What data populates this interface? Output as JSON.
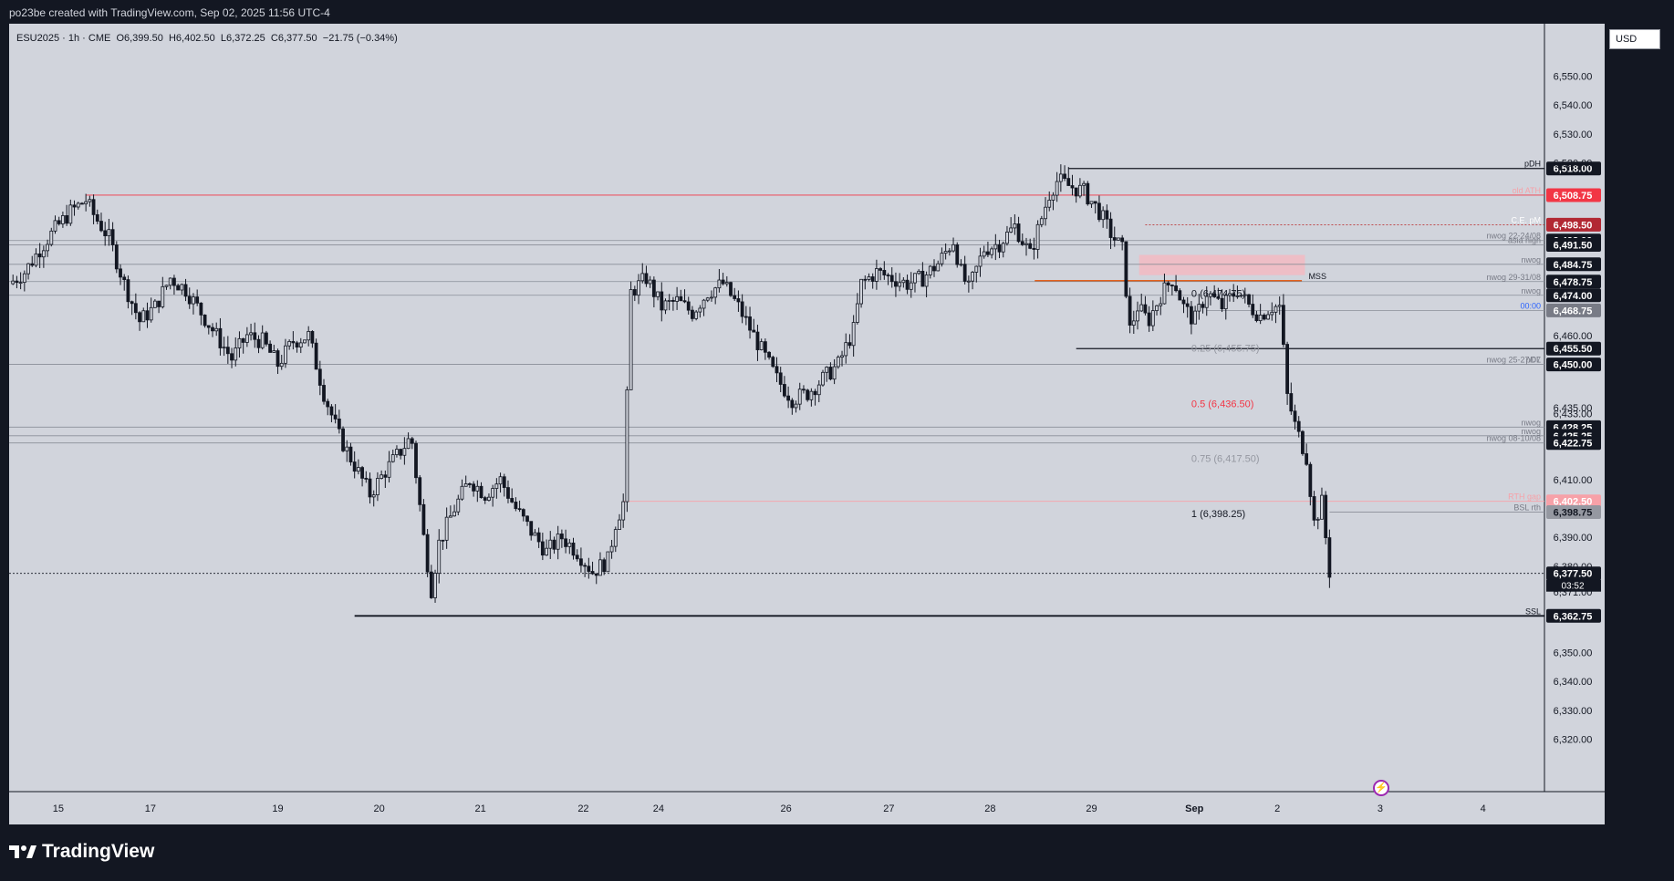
{
  "header": {
    "created_by": "po23be created with TradingView.com, Sep 02, 2025 11:56 UTC-4"
  },
  "legend": {
    "symbol": "ESU2025 · 1h · CME",
    "open": "O6,399.50",
    "high": "H6,402.50",
    "low": "L6,372.25",
    "close": "C6,377.50",
    "change": "−21.75 (−0.34%)"
  },
  "currency": "USD",
  "branding": "TradingView",
  "colors": {
    "background": "#d1d4dc",
    "frame": "#131722",
    "candle": "#131722",
    "red_level": "#f23645",
    "mss_line": "#e65100",
    "fvg_zone": "#f5b8c0",
    "blue_label": "#2962ff"
  },
  "chart_data": {
    "type": "candlestick",
    "symbol": "ESU2025",
    "timeframe": "1h",
    "ylim": [
      6310,
      6560
    ],
    "price_ticks": [
      6550,
      6540,
      6530,
      6520,
      6460,
      6435,
      6410,
      6390,
      6380,
      6350,
      6340,
      6330,
      6320
    ],
    "price_tick_labels": [
      "6,550.00",
      "6,540.00",
      "6,530.00",
      "6,520.00",
      "6,460.00",
      "6,435.00",
      "6,410.00",
      "6,390.00",
      "6,380.00",
      "6,350.00",
      "6,340.00",
      "6,330.00",
      "6,320.00"
    ],
    "date_labels": [
      {
        "label": "15",
        "t": 0.032
      },
      {
        "label": "17",
        "t": 0.092
      },
      {
        "label": "19",
        "t": 0.175
      },
      {
        "label": "20",
        "t": 0.241
      },
      {
        "label": "21",
        "t": 0.307
      },
      {
        "label": "22",
        "t": 0.374
      },
      {
        "label": "24",
        "t": 0.423
      },
      {
        "label": "26",
        "t": 0.506
      },
      {
        "label": "27",
        "t": 0.573
      },
      {
        "label": "28",
        "t": 0.639
      },
      {
        "label": "29",
        "t": 0.705
      },
      {
        "label": "Sep",
        "t": 0.772
      },
      {
        "label": "2",
        "t": 0.826
      },
      {
        "label": "3",
        "t": 0.893
      },
      {
        "label": "4",
        "t": 0.96
      }
    ],
    "price_path": [
      [
        0.0,
        6478
      ],
      [
        0.01,
        6482
      ],
      [
        0.02,
        6490
      ],
      [
        0.03,
        6497
      ],
      [
        0.04,
        6503
      ],
      [
        0.05,
        6507
      ],
      [
        0.055,
        6502
      ],
      [
        0.065,
        6494
      ],
      [
        0.075,
        6478
      ],
      [
        0.085,
        6465
      ],
      [
        0.095,
        6470
      ],
      [
        0.105,
        6480
      ],
      [
        0.115,
        6476
      ],
      [
        0.125,
        6468
      ],
      [
        0.135,
        6460
      ],
      [
        0.145,
        6452
      ],
      [
        0.155,
        6460
      ],
      [
        0.165,
        6458
      ],
      [
        0.175,
        6450
      ],
      [
        0.185,
        6458
      ],
      [
        0.195,
        6460
      ],
      [
        0.205,
        6440
      ],
      [
        0.215,
        6425
      ],
      [
        0.225,
        6415
      ],
      [
        0.235,
        6405
      ],
      [
        0.245,
        6413
      ],
      [
        0.255,
        6420
      ],
      [
        0.262,
        6425
      ],
      [
        0.27,
        6390
      ],
      [
        0.275,
        6372
      ],
      [
        0.28,
        6388
      ],
      [
        0.29,
        6400
      ],
      [
        0.3,
        6410
      ],
      [
        0.31,
        6405
      ],
      [
        0.32,
        6410
      ],
      [
        0.33,
        6400
      ],
      [
        0.34,
        6392
      ],
      [
        0.35,
        6385
      ],
      [
        0.36,
        6390
      ],
      [
        0.37,
        6385
      ],
      [
        0.38,
        6378
      ],
      [
        0.39,
        6382
      ],
      [
        0.395,
        6395
      ],
      [
        0.4,
        6402
      ],
      [
        0.405,
        6475
      ],
      [
        0.415,
        6480
      ],
      [
        0.425,
        6470
      ],
      [
        0.435,
        6472
      ],
      [
        0.445,
        6468
      ],
      [
        0.455,
        6475
      ],
      [
        0.465,
        6478
      ],
      [
        0.475,
        6470
      ],
      [
        0.485,
        6460
      ],
      [
        0.495,
        6450
      ],
      [
        0.5,
        6445
      ],
      [
        0.51,
        6438
      ],
      [
        0.52,
        6440
      ],
      [
        0.53,
        6445
      ],
      [
        0.54,
        6450
      ],
      [
        0.55,
        6462
      ],
      [
        0.555,
        6478
      ],
      [
        0.565,
        6482
      ],
      [
        0.575,
        6480
      ],
      [
        0.585,
        6478
      ],
      [
        0.595,
        6480
      ],
      [
        0.605,
        6485
      ],
      [
        0.615,
        6493
      ],
      [
        0.62,
        6482
      ],
      [
        0.625,
        6476
      ],
      [
        0.635,
        6490
      ],
      [
        0.645,
        6492
      ],
      [
        0.655,
        6498
      ],
      [
        0.665,
        6488
      ],
      [
        0.672,
        6500
      ],
      [
        0.678,
        6510
      ],
      [
        0.683,
        6514
      ],
      [
        0.69,
        6512
      ],
      [
        0.7,
        6510
      ],
      [
        0.71,
        6503
      ],
      [
        0.718,
        6495
      ],
      [
        0.725,
        6490
      ],
      [
        0.73,
        6462
      ],
      [
        0.735,
        6470
      ],
      [
        0.742,
        6465
      ],
      [
        0.75,
        6474
      ],
      [
        0.758,
        6480
      ],
      [
        0.765,
        6470
      ],
      [
        0.772,
        6465
      ],
      [
        0.78,
        6475
      ],
      [
        0.79,
        6470
      ],
      [
        0.8,
        6476
      ],
      [
        0.808,
        6470
      ],
      [
        0.815,
        6467
      ],
      [
        0.822,
        6470
      ],
      [
        0.828,
        6470
      ],
      [
        0.832,
        6440
      ],
      [
        0.838,
        6428
      ],
      [
        0.845,
        6418
      ],
      [
        0.85,
        6395
      ],
      [
        0.855,
        6402
      ],
      [
        0.86,
        6378
      ]
    ],
    "levels": [
      {
        "name": "pDH",
        "price": 6518.0,
        "label": "6,518.00",
        "style": "pdh"
      },
      {
        "name": "old ATH",
        "price": 6508.75,
        "label": "6,508.75",
        "style": "red"
      },
      {
        "name": "C.E. pM",
        "price": 6498.5,
        "label": "6,498.50",
        "style": "dark-red"
      },
      {
        "name": "nwog 22-24/08",
        "price": 6493.0,
        "label": "6,493.00",
        "style": "grey"
      },
      {
        "name": "asia high",
        "price": 6491.5,
        "label": "6,491.50",
        "style": "grey"
      },
      {
        "name": "nwog",
        "price": 6484.75,
        "label": "6,484.75",
        "style": "grey"
      },
      {
        "name": "MSS",
        "price": 6479.0,
        "label": "",
        "style": "mss"
      },
      {
        "name": "nwog 29-31/08",
        "price": 6478.75,
        "label": "6,478.75",
        "style": "grey"
      },
      {
        "name": "nwog",
        "price": 6474.0,
        "label": "6,474.00",
        "style": "grey"
      },
      {
        "name": "00:00",
        "price": 6468.75,
        "label": "6,468.75",
        "style": "blue"
      },
      {
        "name": "",
        "price": 6455.5,
        "label": "6,455.50",
        "style": "black"
      },
      {
        "name": "pDL",
        "price": 6450.0,
        "label": "6,450.00",
        "style": "grey"
      },
      {
        "name": "nwog 25-27/07",
        "price": 6450.0,
        "label": "",
        "style": "grey"
      },
      {
        "name": "",
        "price": 6433.0,
        "label": "6,433.00",
        "style": "plain"
      },
      {
        "name": "nwog",
        "price": 6428.25,
        "label": "6,428.25",
        "style": "grey"
      },
      {
        "name": "nwog",
        "price": 6425.25,
        "label": "6,425.25",
        "style": "grey"
      },
      {
        "name": "nwog 08-10/08",
        "price": 6422.75,
        "label": "6,422.75",
        "style": "grey"
      },
      {
        "name": "RTH gap",
        "price": 6402.5,
        "label": "6,402.50",
        "style": "pink"
      },
      {
        "name": "BSL rth",
        "price": 6398.75,
        "label": "6,398.75",
        "style": "grey-box"
      },
      {
        "name": "",
        "price": 6377.5,
        "label": "6,377.50",
        "style": "current"
      },
      {
        "name": "",
        "price": 6372.5,
        "label": "6,372.50",
        "style": "plain"
      },
      {
        "name": "",
        "price": 6371.0,
        "label": "6,371.00",
        "style": "plain"
      },
      {
        "name": "SSL",
        "price": 6362.75,
        "label": "6,362.75",
        "style": "ssl"
      }
    ],
    "countdown": "03:52",
    "fib_levels": [
      {
        "label": "0 (6,474.75)",
        "price": 6474.75,
        "color": "#131722"
      },
      {
        "label": "0.25 (6,455.75)",
        "price": 6455.75,
        "color": "#9598a1"
      },
      {
        "label": "0.5 (6,436.50)",
        "price": 6436.5,
        "color": "#f23645"
      },
      {
        "label": "0.75 (6,417.50)",
        "price": 6417.5,
        "color": "#9598a1"
      },
      {
        "label": "1 (6,398.25)",
        "price": 6398.25,
        "color": "#131722"
      }
    ],
    "fvg_zone": {
      "top": 6488,
      "bottom": 6481,
      "t_start": 0.736,
      "t_end": 0.844
    }
  }
}
